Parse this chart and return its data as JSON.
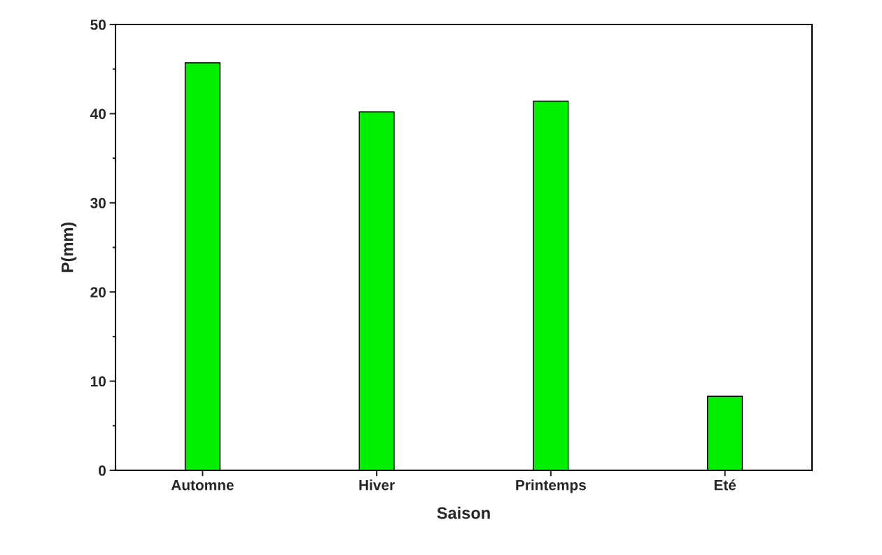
{
  "chart_data": {
    "type": "bar",
    "xlabel": "Saison",
    "ylabel": "P(mm)",
    "categories": [
      "Automne",
      "Hiver",
      "Printemps",
      "Eté"
    ],
    "values": [
      45.7,
      40.2,
      41.4,
      8.3
    ],
    "color": "#00f000",
    "ylim": [
      0,
      50
    ],
    "yticks": [
      0,
      10,
      20,
      30,
      40,
      50
    ],
    "grid": false
  }
}
